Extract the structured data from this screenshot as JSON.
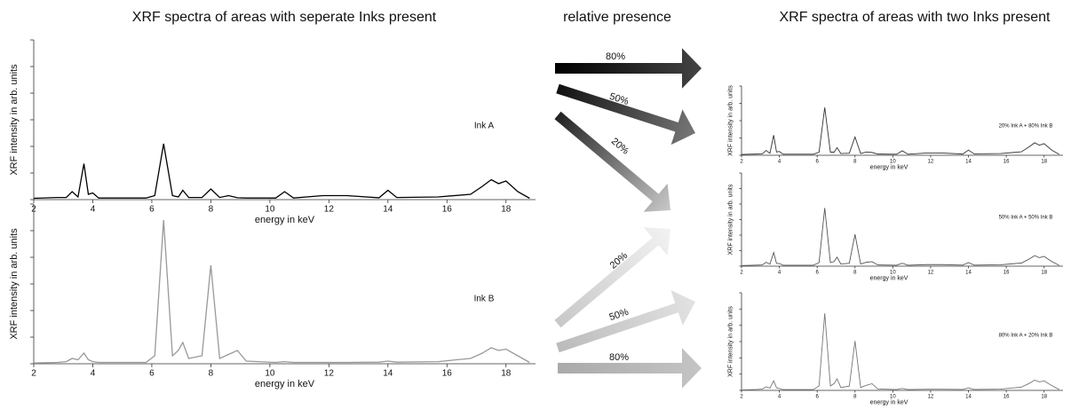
{
  "headings": {
    "left": "XRF spectra of areas with seperate Inks present",
    "middle": "relative presence",
    "right": "XRF spectra of areas with two Inks present"
  },
  "arrows": [
    {
      "label": "80%"
    },
    {
      "label": "50%"
    },
    {
      "label": "20%"
    },
    {
      "label": "20%"
    },
    {
      "label": "50%"
    },
    {
      "label": "80%"
    }
  ],
  "chart_data": [
    {
      "type": "line",
      "x_label": "energy in keV",
      "y_label": "XRF intensity in arb. units",
      "x": [
        2,
        2.8,
        3.1,
        3.3,
        3.5,
        3.7,
        3.85,
        4.0,
        4.2,
        5.8,
        6.1,
        6.4,
        6.7,
        6.9,
        7.05,
        7.25,
        7.7,
        8.0,
        8.3,
        8.6,
        8.9,
        9.2,
        10.2,
        10.5,
        10.8,
        11.8,
        12.6,
        13.7,
        14.0,
        14.3,
        15.7,
        16.8,
        17.2,
        17.5,
        17.75,
        18.0,
        18.4,
        18.8
      ],
      "series": [
        {
          "name": "Ink A",
          "color": "#000000",
          "values": [
            0.05,
            0.08,
            0.08,
            0.3,
            0.1,
            1.35,
            0.2,
            0.25,
            0.06,
            0.06,
            0.15,
            2.1,
            0.15,
            0.1,
            0.35,
            0.08,
            0.08,
            0.4,
            0.08,
            0.15,
            0.07,
            0.06,
            0.06,
            0.3,
            0.06,
            0.15,
            0.15,
            0.07,
            0.35,
            0.08,
            0.1,
            0.2,
            0.5,
            0.75,
            0.6,
            0.7,
            0.3,
            0.05
          ]
        }
      ],
      "xlim": [
        2,
        19
      ],
      "xticks": [
        2,
        4,
        6,
        8,
        10,
        12,
        14,
        16,
        18
      ],
      "ylim": [
        0,
        6
      ],
      "yticks": [
        0,
        1,
        2,
        3,
        4,
        5,
        6
      ]
    },
    {
      "type": "line",
      "x_label": "energy in keV",
      "y_label": "XRF intensity in arb. units",
      "x": [
        2,
        2.8,
        3.1,
        3.3,
        3.5,
        3.7,
        3.85,
        4.0,
        4.2,
        5.8,
        6.1,
        6.4,
        6.7,
        6.9,
        7.05,
        7.25,
        7.7,
        8.0,
        8.3,
        8.6,
        8.9,
        9.2,
        10.2,
        10.5,
        10.8,
        11.8,
        12.6,
        13.7,
        14.0,
        14.3,
        15.7,
        16.8,
        17.2,
        17.5,
        17.75,
        18.0,
        18.4,
        18.8
      ],
      "series": [
        {
          "name": "Ink B",
          "color": "#999999",
          "values": [
            0.03,
            0.05,
            0.08,
            0.2,
            0.15,
            0.4,
            0.15,
            0.08,
            0.05,
            0.05,
            0.3,
            5.4,
            0.3,
            0.5,
            0.8,
            0.2,
            0.3,
            3.7,
            0.2,
            0.35,
            0.5,
            0.1,
            0.05,
            0.08,
            0.05,
            0.05,
            0.05,
            0.06,
            0.1,
            0.06,
            0.08,
            0.2,
            0.4,
            0.6,
            0.5,
            0.55,
            0.3,
            0.05
          ]
        }
      ],
      "xlim": [
        2,
        19
      ],
      "xticks": [
        2,
        4,
        6,
        8,
        10,
        12,
        14,
        16,
        18
      ],
      "ylim": [
        0,
        6
      ],
      "yticks": [
        0,
        1,
        2,
        3,
        4,
        5,
        6
      ]
    },
    {
      "type": "line",
      "x_label": "energy in keV",
      "y_label": "XRF intensity in arb. units",
      "x": [
        2,
        2.8,
        3.1,
        3.3,
        3.5,
        3.7,
        3.85,
        4.0,
        4.2,
        5.8,
        6.1,
        6.4,
        6.7,
        6.9,
        7.05,
        7.25,
        7.7,
        8.0,
        8.3,
        8.6,
        8.9,
        9.2,
        10.2,
        10.5,
        10.8,
        11.8,
        12.6,
        13.7,
        14.0,
        14.3,
        15.7,
        16.8,
        17.2,
        17.5,
        17.75,
        18.0,
        18.4,
        18.8
      ],
      "series": [
        {
          "name": "20% Ink A + 80% Ink B",
          "color": "#333333",
          "values": [
            0.05,
            0.07,
            0.08,
            0.28,
            0.11,
            1.16,
            0.19,
            0.22,
            0.06,
            0.06,
            0.18,
            2.76,
            0.18,
            0.18,
            0.44,
            0.1,
            0.12,
            1.06,
            0.1,
            0.19,
            0.16,
            0.07,
            0.06,
            0.26,
            0.06,
            0.13,
            0.13,
            0.07,
            0.3,
            0.08,
            0.1,
            0.2,
            0.48,
            0.72,
            0.58,
            0.67,
            0.3,
            0.05
          ]
        }
      ],
      "xlim": [
        2,
        19
      ],
      "xticks": [
        2,
        4,
        6,
        8,
        10,
        12,
        14,
        16,
        18
      ],
      "ylim": [
        0,
        4
      ],
      "yticks": [
        0,
        1,
        2,
        3,
        4
      ]
    },
    {
      "type": "line",
      "x_label": "energy in keV",
      "y_label": "XRF intensity in arb. units",
      "x": [
        2,
        2.8,
        3.1,
        3.3,
        3.5,
        3.7,
        3.85,
        4.0,
        4.2,
        5.8,
        6.1,
        6.4,
        6.7,
        6.9,
        7.05,
        7.25,
        7.7,
        8.0,
        8.3,
        8.6,
        8.9,
        9.2,
        10.2,
        10.5,
        10.8,
        11.8,
        12.6,
        13.7,
        14.0,
        14.3,
        15.7,
        16.8,
        17.2,
        17.5,
        17.75,
        18.0,
        18.4,
        18.8
      ],
      "series": [
        {
          "name": "50% Ink A + 50% Ink B",
          "color": "#555555",
          "values": [
            0.04,
            0.07,
            0.08,
            0.25,
            0.13,
            0.88,
            0.18,
            0.17,
            0.06,
            0.06,
            0.23,
            3.75,
            0.23,
            0.3,
            0.58,
            0.14,
            0.19,
            2.05,
            0.14,
            0.25,
            0.29,
            0.08,
            0.06,
            0.19,
            0.06,
            0.1,
            0.1,
            0.07,
            0.23,
            0.07,
            0.09,
            0.2,
            0.45,
            0.68,
            0.55,
            0.63,
            0.3,
            0.05
          ]
        }
      ],
      "xlim": [
        2,
        19
      ],
      "xticks": [
        2,
        4,
        6,
        8,
        10,
        12,
        14,
        16,
        18
      ],
      "ylim": [
        0,
        6
      ],
      "yticks": [
        0,
        1,
        2,
        3,
        4,
        5,
        6
      ]
    },
    {
      "type": "line",
      "x_label": "energy in keV",
      "y_label": "XRF intensity in arb. units",
      "x": [
        2,
        2.8,
        3.1,
        3.3,
        3.5,
        3.7,
        3.85,
        4.0,
        4.2,
        5.8,
        6.1,
        6.4,
        6.7,
        6.9,
        7.05,
        7.25,
        7.7,
        8.0,
        8.3,
        8.6,
        8.9,
        9.2,
        10.2,
        10.5,
        10.8,
        11.8,
        12.6,
        13.7,
        14.0,
        14.3,
        15.7,
        16.8,
        17.2,
        17.5,
        17.75,
        18.0,
        18.4,
        18.8
      ],
      "series": [
        {
          "name": "80% Ink A + 20% Ink B",
          "color": "#777777",
          "values": [
            0.03,
            0.06,
            0.08,
            0.22,
            0.14,
            0.59,
            0.16,
            0.11,
            0.05,
            0.05,
            0.27,
            4.74,
            0.27,
            0.42,
            0.71,
            0.18,
            0.26,
            3.04,
            0.18,
            0.31,
            0.41,
            0.09,
            0.05,
            0.12,
            0.05,
            0.07,
            0.07,
            0.06,
            0.15,
            0.06,
            0.08,
            0.2,
            0.42,
            0.63,
            0.52,
            0.58,
            0.3,
            0.05
          ]
        }
      ],
      "xlim": [
        2,
        19
      ],
      "xticks": [
        2,
        4,
        6,
        8,
        10,
        12,
        14,
        16,
        18
      ],
      "ylim": [
        0,
        6
      ],
      "yticks": [
        0,
        1,
        2,
        3,
        4,
        5,
        6
      ]
    }
  ]
}
